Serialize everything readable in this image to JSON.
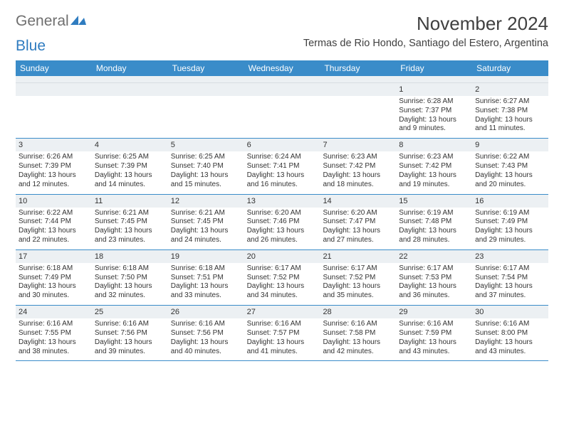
{
  "brand": {
    "part1": "General",
    "part2": "Blue"
  },
  "title": "November 2024",
  "location": "Termas de Rio Hondo, Santiago del Estero, Argentina",
  "colors": {
    "header_bg": "#3a8cc9",
    "header_text": "#ffffff",
    "daynum_bg": "#ecf0f3",
    "rule": "#3a8cc9",
    "text": "#333333",
    "title": "#404040",
    "brand_gray": "#6f6f6f",
    "brand_blue": "#2f7cc0"
  },
  "daysOfWeek": [
    "Sunday",
    "Monday",
    "Tuesday",
    "Wednesday",
    "Thursday",
    "Friday",
    "Saturday"
  ],
  "weeks": [
    [
      null,
      null,
      null,
      null,
      null,
      {
        "n": "1",
        "sr": "6:28 AM",
        "ss": "7:37 PM",
        "dlh": "13",
        "dlm": "9"
      },
      {
        "n": "2",
        "sr": "6:27 AM",
        "ss": "7:38 PM",
        "dlh": "13",
        "dlm": "11"
      }
    ],
    [
      {
        "n": "3",
        "sr": "6:26 AM",
        "ss": "7:39 PM",
        "dlh": "13",
        "dlm": "12"
      },
      {
        "n": "4",
        "sr": "6:25 AM",
        "ss": "7:39 PM",
        "dlh": "13",
        "dlm": "14"
      },
      {
        "n": "5",
        "sr": "6:25 AM",
        "ss": "7:40 PM",
        "dlh": "13",
        "dlm": "15"
      },
      {
        "n": "6",
        "sr": "6:24 AM",
        "ss": "7:41 PM",
        "dlh": "13",
        "dlm": "16"
      },
      {
        "n": "7",
        "sr": "6:23 AM",
        "ss": "7:42 PM",
        "dlh": "13",
        "dlm": "18"
      },
      {
        "n": "8",
        "sr": "6:23 AM",
        "ss": "7:42 PM",
        "dlh": "13",
        "dlm": "19"
      },
      {
        "n": "9",
        "sr": "6:22 AM",
        "ss": "7:43 PM",
        "dlh": "13",
        "dlm": "20"
      }
    ],
    [
      {
        "n": "10",
        "sr": "6:22 AM",
        "ss": "7:44 PM",
        "dlh": "13",
        "dlm": "22"
      },
      {
        "n": "11",
        "sr": "6:21 AM",
        "ss": "7:45 PM",
        "dlh": "13",
        "dlm": "23"
      },
      {
        "n": "12",
        "sr": "6:21 AM",
        "ss": "7:45 PM",
        "dlh": "13",
        "dlm": "24"
      },
      {
        "n": "13",
        "sr": "6:20 AM",
        "ss": "7:46 PM",
        "dlh": "13",
        "dlm": "26"
      },
      {
        "n": "14",
        "sr": "6:20 AM",
        "ss": "7:47 PM",
        "dlh": "13",
        "dlm": "27"
      },
      {
        "n": "15",
        "sr": "6:19 AM",
        "ss": "7:48 PM",
        "dlh": "13",
        "dlm": "28"
      },
      {
        "n": "16",
        "sr": "6:19 AM",
        "ss": "7:49 PM",
        "dlh": "13",
        "dlm": "29"
      }
    ],
    [
      {
        "n": "17",
        "sr": "6:18 AM",
        "ss": "7:49 PM",
        "dlh": "13",
        "dlm": "30"
      },
      {
        "n": "18",
        "sr": "6:18 AM",
        "ss": "7:50 PM",
        "dlh": "13",
        "dlm": "32"
      },
      {
        "n": "19",
        "sr": "6:18 AM",
        "ss": "7:51 PM",
        "dlh": "13",
        "dlm": "33"
      },
      {
        "n": "20",
        "sr": "6:17 AM",
        "ss": "7:52 PM",
        "dlh": "13",
        "dlm": "34"
      },
      {
        "n": "21",
        "sr": "6:17 AM",
        "ss": "7:52 PM",
        "dlh": "13",
        "dlm": "35"
      },
      {
        "n": "22",
        "sr": "6:17 AM",
        "ss": "7:53 PM",
        "dlh": "13",
        "dlm": "36"
      },
      {
        "n": "23",
        "sr": "6:17 AM",
        "ss": "7:54 PM",
        "dlh": "13",
        "dlm": "37"
      }
    ],
    [
      {
        "n": "24",
        "sr": "6:16 AM",
        "ss": "7:55 PM",
        "dlh": "13",
        "dlm": "38"
      },
      {
        "n": "25",
        "sr": "6:16 AM",
        "ss": "7:56 PM",
        "dlh": "13",
        "dlm": "39"
      },
      {
        "n": "26",
        "sr": "6:16 AM",
        "ss": "7:56 PM",
        "dlh": "13",
        "dlm": "40"
      },
      {
        "n": "27",
        "sr": "6:16 AM",
        "ss": "7:57 PM",
        "dlh": "13",
        "dlm": "41"
      },
      {
        "n": "28",
        "sr": "6:16 AM",
        "ss": "7:58 PM",
        "dlh": "13",
        "dlm": "42"
      },
      {
        "n": "29",
        "sr": "6:16 AM",
        "ss": "7:59 PM",
        "dlh": "13",
        "dlm": "43"
      },
      {
        "n": "30",
        "sr": "6:16 AM",
        "ss": "8:00 PM",
        "dlh": "13",
        "dlm": "43"
      }
    ]
  ],
  "labels": {
    "sunrise": "Sunrise: ",
    "sunset": "Sunset: ",
    "daylight1": "Daylight: ",
    "hours_word": " hours",
    "and_word": "and ",
    "minutes_word": " minutes."
  }
}
